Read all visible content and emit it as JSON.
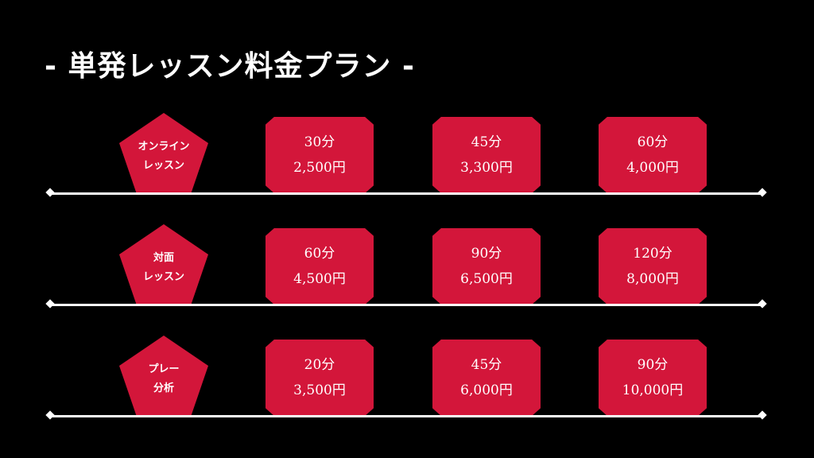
{
  "title": "- 単発レッスン料金プラン -",
  "colors": {
    "background": "#000000",
    "accent": "#d3163a",
    "text": "#ffffff"
  },
  "rows": [
    {
      "category": {
        "line1": "オンライン",
        "line2": "レッスン"
      },
      "plans": [
        {
          "duration": "30分",
          "price": "2,500円"
        },
        {
          "duration": "45分",
          "price": "3,300円"
        },
        {
          "duration": "60分",
          "price": "4,000円"
        }
      ]
    },
    {
      "category": {
        "line1": "対面",
        "line2": "レッスン"
      },
      "plans": [
        {
          "duration": "60分",
          "price": "4,500円"
        },
        {
          "duration": "90分",
          "price": "6,500円"
        },
        {
          "duration": "120分",
          "price": "8,000円"
        }
      ]
    },
    {
      "category": {
        "line1": "プレー",
        "line2": "分析"
      },
      "plans": [
        {
          "duration": "20分",
          "price": "3,500円"
        },
        {
          "duration": "45分",
          "price": "6,000円"
        },
        {
          "duration": "90分",
          "price": "10,000円"
        }
      ]
    }
  ]
}
